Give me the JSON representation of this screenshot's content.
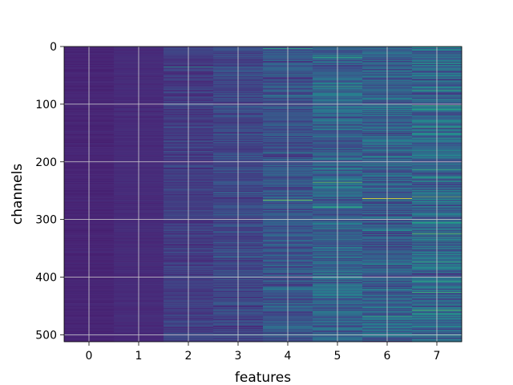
{
  "chart_data": {
    "type": "heatmap",
    "title": "",
    "xlabel": "features",
    "ylabel": "channels",
    "x_categories": [
      0,
      1,
      2,
      3,
      4,
      5,
      6,
      7
    ],
    "xticks": [
      "0",
      "1",
      "2",
      "3",
      "4",
      "5",
      "6",
      "7"
    ],
    "yticks": [
      "0",
      "100",
      "200",
      "300",
      "400",
      "500"
    ],
    "ylim": [
      512,
      0
    ],
    "rows": 512,
    "colormap": "viridis",
    "grid": true,
    "colors": {
      "background_low": "#3b528b",
      "low": "#472d7b",
      "mid": "#21918c",
      "high": "#5ec962",
      "peak": "#fde725",
      "grid": "#d0d0d0"
    },
    "column_value_mean": [
      0.12,
      0.14,
      0.2,
      0.24,
      0.3,
      0.36,
      0.34,
      0.38
    ],
    "column_value_spread": [
      0.02,
      0.02,
      0.08,
      0.1,
      0.14,
      0.18,
      0.18,
      0.2
    ],
    "peaks": [
      {
        "feature": 4,
        "channel": 266,
        "value": 0.9
      },
      {
        "feature": 5,
        "channel": 235,
        "value": 0.85
      },
      {
        "feature": 5,
        "channel": 278,
        "value": 0.75
      },
      {
        "feature": 6,
        "channel": 263,
        "value": 1.0
      },
      {
        "feature": 7,
        "channel": 260,
        "value": 0.85
      },
      {
        "feature": 7,
        "channel": 324,
        "value": 0.85
      },
      {
        "feature": 2,
        "channel": 35,
        "value": 0.6
      },
      {
        "feature": 5,
        "channel": 18,
        "value": 0.7
      },
      {
        "feature": 4,
        "channel": 3,
        "value": 0.7
      },
      {
        "feature": 6,
        "channel": 468,
        "value": 0.7
      },
      {
        "feature": 7,
        "channel": 140,
        "value": 0.7
      }
    ]
  }
}
